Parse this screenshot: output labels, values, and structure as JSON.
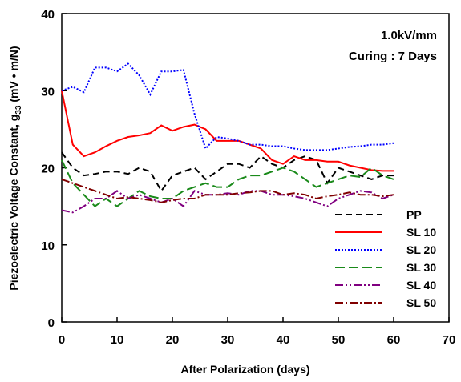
{
  "chart_data": {
    "type": "line",
    "annotations": [
      "1.0kV/mm",
      "Curing : 7 Days"
    ],
    "x_label": "After Polarization (days)",
    "y_label": {
      "before": "Piezoelectric Voltage Constant, g",
      "sub": "33",
      "after": " (mV • m/N)"
    },
    "xlim": [
      0,
      70
    ],
    "xticks": [
      0,
      10,
      20,
      30,
      40,
      50,
      60,
      70
    ],
    "ylim": [
      0,
      40
    ],
    "yticks": [
      0,
      10,
      20,
      30,
      40
    ],
    "legend": "lower right",
    "x": [
      0,
      2,
      4,
      6,
      8,
      10,
      12,
      14,
      16,
      18,
      20,
      22,
      24,
      26,
      28,
      30,
      32,
      34,
      36,
      38,
      40,
      42,
      44,
      46,
      48,
      50,
      52,
      54,
      56,
      58,
      60
    ],
    "series": [
      {
        "name": "PP",
        "color": "#000000",
        "dash": "8,5",
        "values": [
          22,
          20,
          19,
          19.2,
          19.5,
          19.5,
          19.2,
          20,
          19.5,
          17,
          19,
          19.5,
          20,
          18.5,
          19.5,
          20.5,
          20.5,
          20,
          21.5,
          20.5,
          20,
          21,
          21.5,
          21,
          18,
          20,
          19.5,
          19,
          18.5,
          19,
          19
        ]
      },
      {
        "name": "SL 10",
        "color": "#ff0000",
        "dash": "none",
        "values": [
          30,
          23,
          21.5,
          22,
          22.8,
          23.5,
          24,
          24.2,
          24.5,
          25.5,
          24.8,
          25.3,
          25.6,
          25,
          23.5,
          23.5,
          23.5,
          23,
          22.5,
          21,
          20.5,
          21.5,
          21,
          21,
          20.8,
          20.8,
          20.3,
          20,
          19.7,
          19.6,
          19.6
        ]
      },
      {
        "name": "SL 20",
        "color": "#0000ff",
        "dash": "2,2",
        "values": [
          30,
          30.5,
          29.8,
          33,
          33,
          32.5,
          33.5,
          32,
          29.5,
          32.5,
          32.5,
          32.7,
          27,
          22.5,
          24,
          23.8,
          23.5,
          23,
          23,
          22.8,
          22.8,
          22.5,
          22.3,
          22.3,
          22.3,
          22.5,
          22.7,
          22.8,
          23,
          23,
          23.2
        ]
      },
      {
        "name": "SL 30",
        "color": "#1a8a1a",
        "dash": "12,5",
        "values": [
          21,
          18,
          16.5,
          15,
          16,
          15,
          16,
          17,
          16.3,
          16,
          16,
          17,
          17.5,
          18,
          17.5,
          17.5,
          18.5,
          19,
          19,
          19.5,
          20,
          19.5,
          18.5,
          17.5,
          18,
          18.5,
          19,
          18.8,
          20,
          19,
          18.5
        ]
      },
      {
        "name": "SL 40",
        "color": "#800080",
        "dash": "10,3,2,3,2,3",
        "values": [
          14.5,
          14.2,
          15,
          16,
          16,
          17,
          16,
          16.5,
          16,
          15.5,
          16,
          15,
          17,
          16.5,
          16.5,
          16.7,
          16.5,
          17,
          17,
          16.5,
          16.5,
          16.3,
          16,
          15.5,
          15,
          16,
          16.5,
          17,
          16.8,
          16,
          16.5
        ]
      },
      {
        "name": "SL 50",
        "color": "#800000",
        "dash": "10,3,2,3",
        "values": [
          18.5,
          18,
          17.5,
          17,
          16.5,
          16,
          16.2,
          16,
          15.8,
          15.5,
          15.8,
          16,
          16,
          16.5,
          16.5,
          16.5,
          16.7,
          16.8,
          17,
          17,
          16.5,
          16.7,
          16.5,
          16,
          16.3,
          16.5,
          16.8,
          16.5,
          16.5,
          16.3,
          16.5
        ]
      }
    ]
  }
}
